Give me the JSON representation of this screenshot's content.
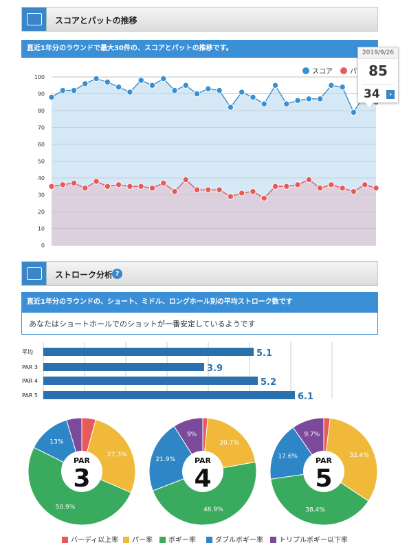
{
  "section1": {
    "title": "スコアとパットの推移",
    "description": "直近1年分のラウンドで最大30件の、スコアとパットの推移です。"
  },
  "tooltip": {
    "date": "2019/9/26",
    "score": "85",
    "putts": "34",
    "arrow": "›"
  },
  "section2": {
    "title": "ストローク分析",
    "help": "?",
    "description": "直近1年分のラウンドの、ショート、ミドル、ロングホール別の平均ストローク数です",
    "note": "あなたはショートホールでのショットが一番安定しているようです"
  },
  "colors": {
    "score": "#3a8fd0",
    "putt": "#e85a5a",
    "bar": "#2a6fae",
    "birdie": "#e8595a",
    "par": "#f0b93a",
    "bogey": "#3aaa5e",
    "double": "#2f86c6",
    "triple": "#7b4a9a"
  },
  "chart_data": [
    {
      "type": "line",
      "ylim": [
        0,
        100
      ],
      "yticks": [
        0,
        10,
        20,
        30,
        40,
        50,
        60,
        70,
        80,
        90,
        100
      ],
      "series": [
        {
          "name": "スコア",
          "values": [
            88,
            92,
            92,
            96,
            99,
            97,
            94,
            91,
            98,
            95,
            99,
            92,
            95,
            90,
            93,
            92,
            82,
            91,
            88,
            84,
            95,
            84,
            86,
            87,
            87,
            95,
            94,
            79,
            90,
            85
          ]
        },
        {
          "name": "パット",
          "values": [
            35,
            36,
            37,
            34,
            38,
            35,
            36,
            35,
            35,
            34,
            37,
            32,
            39,
            33,
            33,
            33,
            29,
            31,
            32,
            28,
            35,
            35,
            36,
            39,
            34,
            36,
            34,
            32,
            36,
            34
          ]
        }
      ]
    },
    {
      "type": "bar",
      "categories": [
        "平均",
        "PAR 3",
        "PAR 4",
        "PAR 5"
      ],
      "values": [
        5.1,
        3.9,
        5.2,
        6.1
      ],
      "xlim": [
        0,
        7
      ]
    },
    {
      "type": "pie",
      "label_top": "PAR",
      "label_num": "3",
      "slices": [
        {
          "name": "バーディ以上率",
          "value": 4.2
        },
        {
          "name": "パー率",
          "value": 27.3,
          "label": "27.3%"
        },
        {
          "name": "ボギー率",
          "value": 50.9,
          "label": "50.9%"
        },
        {
          "name": "ダブルボギー率",
          "value": 13.0,
          "label": "13%"
        },
        {
          "name": "トリプルボギー以下率",
          "value": 4.6
        }
      ]
    },
    {
      "type": "pie",
      "label_top": "PAR",
      "label_num": "4",
      "slices": [
        {
          "name": "バーディ以上率",
          "value": 1.5
        },
        {
          "name": "パー率",
          "value": 20.7,
          "label": "20.7%"
        },
        {
          "name": "ボギー率",
          "value": 46.9,
          "label": "46.9%"
        },
        {
          "name": "ダブルボギー率",
          "value": 21.9,
          "label": "21.9%"
        },
        {
          "name": "トリプルボギー以下率",
          "value": 9.0,
          "label": "9%"
        }
      ]
    },
    {
      "type": "pie",
      "label_top": "PAR",
      "label_num": "5",
      "slices": [
        {
          "name": "バーディ以上率",
          "value": 1.9
        },
        {
          "name": "パー率",
          "value": 32.4,
          "label": "32.4%"
        },
        {
          "name": "ボギー率",
          "value": 38.4,
          "label": "38.4%"
        },
        {
          "name": "ダブルボギー率",
          "value": 17.6,
          "label": "17.6%"
        },
        {
          "name": "トリプルボギー以下率",
          "value": 9.7,
          "label": "9.7%"
        }
      ]
    }
  ],
  "pie_legend": [
    "バーディ以上率",
    "パー率",
    "ボギー率",
    "ダブルボギー率",
    "トリプルボギー以下率"
  ]
}
